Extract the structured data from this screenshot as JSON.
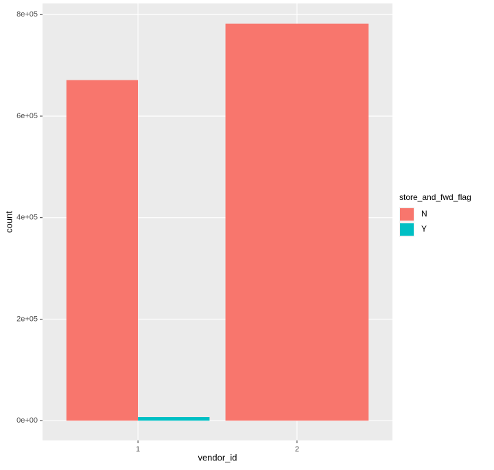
{
  "chart_data": {
    "type": "bar",
    "x_label": "vendor_id",
    "y_label": "count",
    "categories": [
      "1",
      "2"
    ],
    "series": [
      {
        "name": "N",
        "color": "#f8766d",
        "values": [
          671000,
          782000
        ]
      },
      {
        "name": "Y",
        "color": "#00bfc4",
        "values": [
          7000,
          null
        ]
      }
    ],
    "legend_title": "store_and_fwd_flag",
    "legend": "right",
    "ylim": [
      -39000,
      822000
    ],
    "yticks": [
      {
        "value": 0,
        "label": "0e+00"
      },
      {
        "value": 200000,
        "label": "2e+05"
      },
      {
        "value": 400000,
        "label": "4e+05"
      },
      {
        "value": 600000,
        "label": "6e+05"
      },
      {
        "value": 800000,
        "label": "8e+05"
      }
    ],
    "grid": true
  }
}
